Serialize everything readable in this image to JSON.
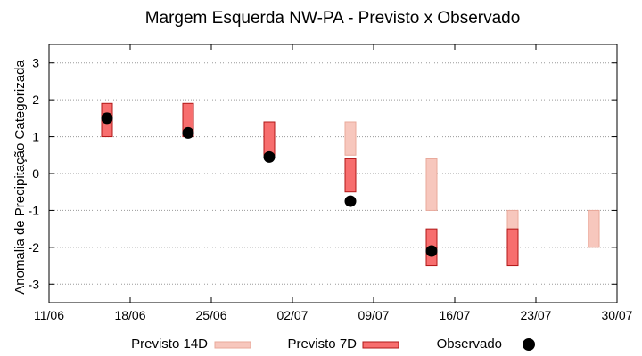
{
  "chart_data": {
    "type": "range-bar",
    "title": "Margem Esquerda NW-PA - Previsto x Observado",
    "xlabel": "",
    "ylabel": "Anomalia de Precipitação Categorizada",
    "ylim": [
      -3.5,
      3.5
    ],
    "yticks": [
      3,
      2,
      1,
      0,
      -1,
      -2,
      -3
    ],
    "ytick_labels": [
      "3",
      "2",
      "1",
      "0",
      "-1",
      "-2",
      "-3"
    ],
    "xlim": [
      "2024-06-11",
      "2024-06-30T+30"
    ],
    "xtick_labels": [
      "11/06",
      "18/06",
      "25/06",
      "02/07",
      "09/07",
      "16/07",
      "23/07",
      "30/07"
    ],
    "grid": "horizontal dotted",
    "legend_position": "bottom",
    "series": [
      {
        "name": "Previsto 14D",
        "color": "#f7c7bd",
        "stroke": "#e8a89a",
        "x": [
          "07/07",
          "14/07",
          "21/07",
          "28/07"
        ],
        "low": [
          0.5,
          -1.0,
          -2.0,
          -2.0
        ],
        "high": [
          1.4,
          0.4,
          -1.0,
          -1.0
        ]
      },
      {
        "name": "Previsto 7D",
        "color": "#f76e6e",
        "stroke": "#b01717",
        "x": [
          "16/06",
          "23/06",
          "30/06",
          "07/07",
          "14/07",
          "21/07"
        ],
        "low": [
          1.0,
          1.0,
          0.5,
          -0.5,
          -2.5,
          -2.5
        ],
        "high": [
          1.9,
          1.9,
          1.4,
          0.4,
          -1.5,
          -1.5
        ]
      },
      {
        "name": "Observado",
        "color": "#000000",
        "x": [
          "16/06",
          "23/06",
          "30/06",
          "07/07",
          "14/07"
        ],
        "values": [
          1.5,
          1.1,
          0.45,
          -0.75,
          -2.1
        ]
      }
    ]
  }
}
